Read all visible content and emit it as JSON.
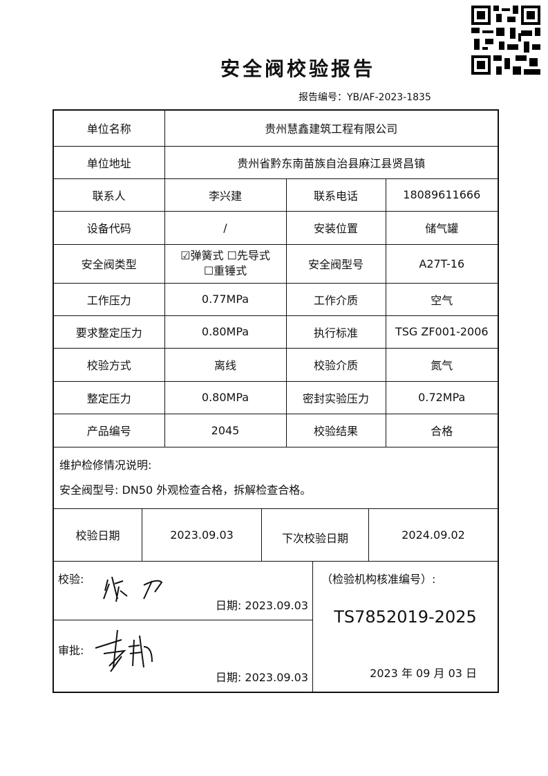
{
  "title": "安全阀校验报告",
  "report_no": "报告编号：YB/AF-2023-1835",
  "rows": [
    {
      "l1": "单位名称",
      "v1": "贵州慧鑫建筑工程有限公司"
    },
    {
      "l1": "单位地址",
      "v1": "贵州省黔东南苗族自治县麻江县贤昌镇"
    },
    {
      "l1": "联系人",
      "v1": "李兴建",
      "l2": "联系电话",
      "v2": "18089611666"
    },
    {
      "l1": "设备代码",
      "v1": "/",
      "l2": "安装位置",
      "v2": "储气罐"
    },
    {
      "l1": "安全阀类型",
      "v1a": "☑弹簧式 ☐先导式",
      "v1b": "☐重锤式",
      "l2": "安全阀型号",
      "v2": "A27T-16"
    },
    {
      "l1": "工作压力",
      "v1": "0.77MPa",
      "l2": "工作介质",
      "v2": "空气"
    },
    {
      "l1": "要求整定压力",
      "v1": "0.80MPa",
      "l2": "执行标准",
      "v2": "TSG ZF001-2006"
    },
    {
      "l1": "校验方式",
      "v1": "离线",
      "l2": "校验介质",
      "v2": "氮气"
    },
    {
      "l1": "整定压力",
      "v1": "0.80MPa",
      "l2": "密封实验压力",
      "v2": "0.72MPa"
    },
    {
      "l1": "产品编号",
      "v1": "2045",
      "l2": "校验结果",
      "v2": "合格"
    }
  ],
  "notes": {
    "label": "维护检修情况说明:",
    "text": "安全阀型号: DN50 外观检查合格，拆解检查合格。"
  },
  "dates": {
    "check_label": "校验日期",
    "check": "2023.09.03",
    "next_label": "下次校验日期",
    "next": "2024.09.02"
  },
  "sign": {
    "checker_label": "校验:",
    "checker_sig": "徐力",
    "checker_date": "日期: 2023.09.03",
    "approver_label": "审批:",
    "approver_sig": "李玮",
    "approver_date": "日期: 2023.09.03"
  },
  "org": {
    "label": "（检验机构核准编号）:",
    "code": "TS7852019-2025",
    "date": "2023 年 09 月 03 日"
  }
}
